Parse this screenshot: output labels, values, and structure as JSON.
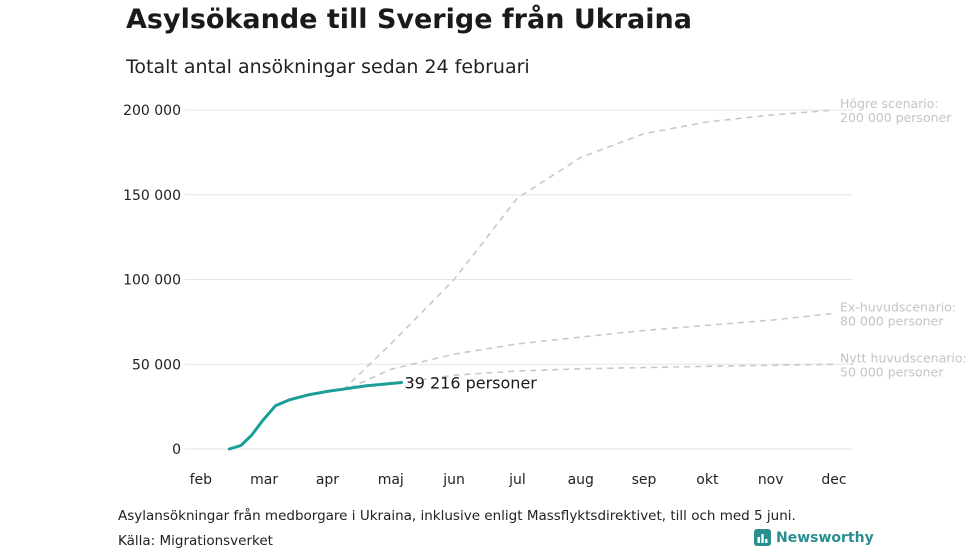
{
  "header": {
    "title": "Asylsökande till Sverige från Ukraina",
    "subtitle": "Totalt antal ansökningar sedan 24 februari"
  },
  "footer": {
    "note": "Asylansökningar från medborgare i Ukraina, inklusive enligt Massflyktsdirektivet, till och med 5 juni.",
    "source": "Källa: Migrationsverket",
    "brand": "Newsworthy"
  },
  "colors": {
    "actual": "#1a9e96",
    "scenario": "#c8c8c8",
    "scenario_label": "#c4c4c4",
    "grid": "#e6e6e6",
    "brand": "#2a8e90"
  },
  "chart_data": {
    "type": "line",
    "x_unit": "month",
    "x_tick_labels": [
      "feb",
      "mar",
      "apr",
      "maj",
      "jun",
      "jul",
      "aug",
      "sep",
      "okt",
      "nov",
      "dec"
    ],
    "y_tick_values": [
      0,
      50000,
      100000,
      150000,
      200000
    ],
    "y_tick_labels": [
      "0",
      "50 000",
      "100 000",
      "150 000",
      "200 000"
    ],
    "ylim": [
      0,
      200000
    ],
    "xlim": [
      1.75,
      12.3
    ],
    "grid": "horizontal",
    "series": [
      {
        "style": "solid",
        "end_label": "39 216 personer",
        "points": [
          [
            2.45,
            0
          ],
          [
            2.63,
            2000
          ],
          [
            2.8,
            8000
          ],
          [
            2.98,
            17000
          ],
          [
            3.18,
            25500
          ],
          [
            3.4,
            29000
          ],
          [
            3.7,
            32000
          ],
          [
            4.0,
            34000
          ],
          [
            4.3,
            35600
          ],
          [
            4.6,
            37200
          ],
          [
            4.9,
            38300
          ],
          [
            5.17,
            39216
          ]
        ]
      },
      {
        "style": "dashed",
        "end_label": [
          "Högre scenario:",
          "200 000 personer"
        ],
        "points": [
          [
            4.25,
            35000
          ],
          [
            5.0,
            62000
          ],
          [
            6.0,
            100000
          ],
          [
            7.0,
            148000
          ],
          [
            8.0,
            172000
          ],
          [
            9.0,
            186000
          ],
          [
            10.0,
            193000
          ],
          [
            11.0,
            197000
          ],
          [
            12.0,
            200000
          ]
        ]
      },
      {
        "style": "dashed",
        "end_label": [
          "Ex-huvudscenario:",
          "80 000 personer"
        ],
        "points": [
          [
            4.35,
            36000
          ],
          [
            5.0,
            47000
          ],
          [
            6.0,
            56000
          ],
          [
            7.0,
            62000
          ],
          [
            8.0,
            66000
          ],
          [
            9.0,
            70000
          ],
          [
            10.0,
            73000
          ],
          [
            11.0,
            76000
          ],
          [
            12.0,
            80000
          ]
        ]
      },
      {
        "style": "dashed",
        "end_label": [
          "Nytt huvudscenario:",
          "50 000 personer"
        ],
        "points": [
          [
            5.3,
            40000
          ],
          [
            6.0,
            43500
          ],
          [
            7.0,
            46000
          ],
          [
            8.0,
            47300
          ],
          [
            9.0,
            48000
          ],
          [
            10.0,
            48800
          ],
          [
            11.0,
            49400
          ],
          [
            12.0,
            50000
          ]
        ]
      }
    ]
  }
}
